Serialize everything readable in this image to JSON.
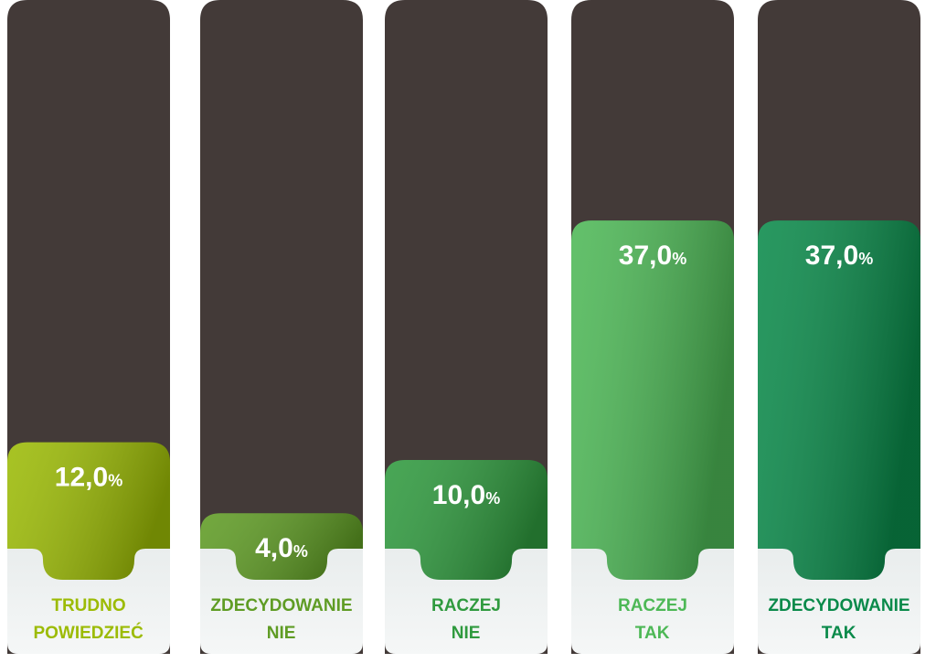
{
  "chart_data": {
    "type": "bar",
    "categories": [
      "TRUDNO POWIEDZIEĆ",
      "ZDECYDOWANIE NIE",
      "RACZEJ NIE",
      "RACZEJ TAK",
      "ZDECYDOWANIE TAK"
    ],
    "values": [
      12,
      4,
      10,
      37,
      37
    ],
    "value_labels": [
      "12,0%",
      "4,0%",
      "10,0%",
      "37,0%",
      "37,0%"
    ],
    "colors": [
      "#9cbb05",
      "#5f9c24",
      "#2f9a3e",
      "#4db856",
      "#0a8a4a"
    ]
  }
}
